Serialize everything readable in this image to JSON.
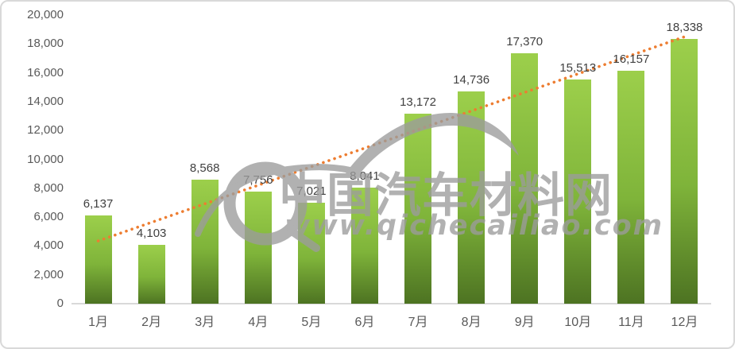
{
  "chart_data": {
    "type": "bar",
    "title": "",
    "xlabel": "",
    "ylabel": "",
    "categories": [
      "1月",
      "2月",
      "3月",
      "4月",
      "5月",
      "6月",
      "7月",
      "8月",
      "9月",
      "10月",
      "11月",
      "12月"
    ],
    "values": [
      6137,
      4103,
      8568,
      7756,
      7021,
      8041,
      13172,
      14736,
      17370,
      15513,
      16157,
      18338
    ],
    "value_labels": [
      "6,137",
      "4,103",
      "8,568",
      "7,756",
      "7,021",
      "8,041",
      "13,172",
      "14,736",
      "17,370",
      "15,513",
      "16,157",
      "18,338"
    ],
    "ylim": [
      0,
      20000
    ],
    "ytick_interval": 2000,
    "ytick_labels": [
      "0",
      "2,000",
      "4,000",
      "6,000",
      "8,000",
      "10,000",
      "12,000",
      "14,000",
      "16,000",
      "18,000",
      "20,000"
    ],
    "grid": false,
    "legend": "none",
    "colors": {
      "bar_top": "#9ccf4b",
      "bar_bottom": "#4d7322",
      "axis_line": "#d9d9d9",
      "tick_label": "#595959",
      "value_label": "#404040",
      "trendline": "#ed7d31"
    },
    "trendline": {
      "type": "linear",
      "style": "round-dot",
      "color": "#ed7d31",
      "start_value": 4350,
      "end_value": 18500
    }
  },
  "watermark": {
    "site_name": "中国汽车材料网",
    "site_url": "www.qichecailiao.com",
    "color": "#9c9c9c"
  }
}
